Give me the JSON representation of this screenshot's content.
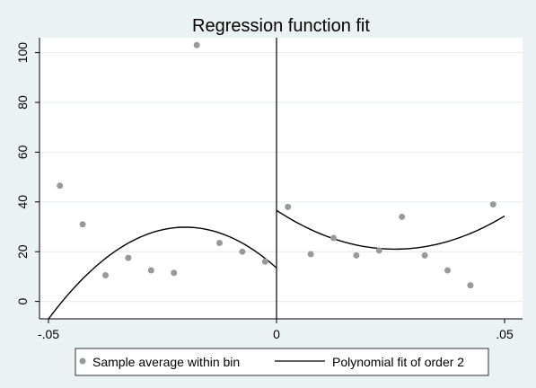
{
  "chart_data": {
    "type": "scatter",
    "title": "Regression function fit",
    "xlim": [
      -0.05,
      0.05
    ],
    "ylim": [
      -7,
      106
    ],
    "x_ticks": [
      {
        "value": -0.05,
        "label": "-.05"
      },
      {
        "value": 0,
        "label": "0"
      },
      {
        "value": 0.05,
        "label": ".05"
      }
    ],
    "y_ticks": [
      {
        "value": 0,
        "label": "0"
      },
      {
        "value": 20,
        "label": "20"
      },
      {
        "value": 40,
        "label": "40"
      },
      {
        "value": 60,
        "label": "60"
      },
      {
        "value": 80,
        "label": "80"
      },
      {
        "value": 100,
        "label": "100"
      }
    ],
    "grid": true,
    "cutoff": 0,
    "legend_position": "bottom",
    "series": [
      {
        "name": "Sample average within bin",
        "kind": "scatter",
        "color": "#999999",
        "points": [
          {
            "x": -0.0475,
            "y": 46.5
          },
          {
            "x": -0.0425,
            "y": 31
          },
          {
            "x": -0.0375,
            "y": 10.5
          },
          {
            "x": -0.0325,
            "y": 17.5
          },
          {
            "x": -0.0275,
            "y": 12.5
          },
          {
            "x": -0.0225,
            "y": 11.5
          },
          {
            "x": -0.0175,
            "y": 103
          },
          {
            "x": -0.0125,
            "y": 23.5
          },
          {
            "x": -0.0075,
            "y": 20
          },
          {
            "x": -0.0025,
            "y": 16
          },
          {
            "x": 0.0025,
            "y": 38
          },
          {
            "x": 0.0075,
            "y": 19
          },
          {
            "x": 0.0125,
            "y": 25.5
          },
          {
            "x": 0.0175,
            "y": 18.5
          },
          {
            "x": 0.0225,
            "y": 20.5
          },
          {
            "x": 0.0275,
            "y": 34
          },
          {
            "x": 0.0325,
            "y": 18.5
          },
          {
            "x": 0.0375,
            "y": 12.5
          },
          {
            "x": 0.0425,
            "y": 6.5
          },
          {
            "x": 0.0475,
            "y": 39
          }
        ]
      },
      {
        "name": "Polynomial fit of order 2",
        "kind": "line",
        "color": "#000000",
        "segments": [
          {
            "x_from": -0.05,
            "x_to": 0,
            "quadratic": [
              13.45,
              -1640,
              -41000
            ]
          },
          {
            "x_from": 0,
            "x_to": 0.05,
            "quadratic": [
              36.6,
              -1200,
              23100
            ]
          }
        ]
      }
    ]
  }
}
